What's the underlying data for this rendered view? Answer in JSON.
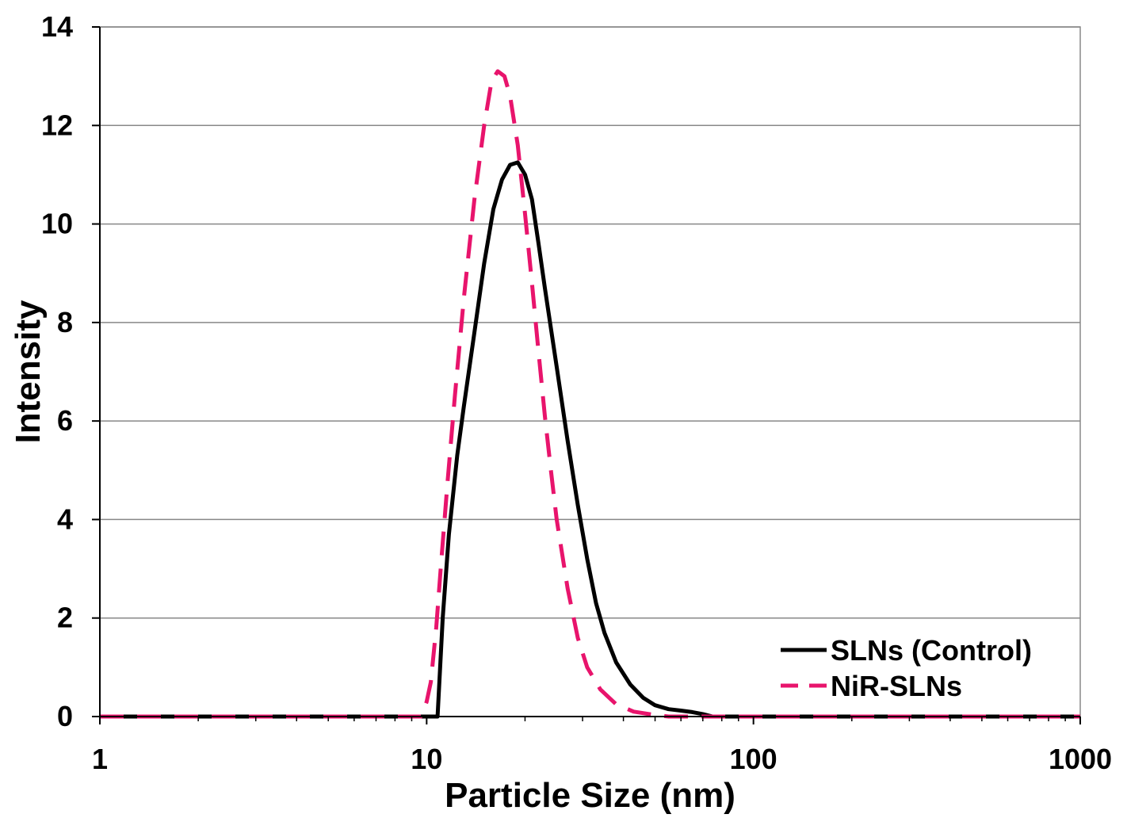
{
  "chart_data": {
    "type": "line",
    "title": "",
    "xlabel": "Particle Size (nm)",
    "ylabel": "Intensity",
    "x_scale": "log",
    "xlim": [
      1,
      1000
    ],
    "ylim": [
      0,
      14
    ],
    "x_ticks": [
      1,
      10,
      100,
      1000
    ],
    "x_tick_labels": [
      "1",
      "10",
      "100",
      "1000"
    ],
    "y_ticks": [
      0,
      2,
      4,
      6,
      8,
      10,
      12,
      14
    ],
    "y_tick_labels": [
      "0",
      "2",
      "4",
      "6",
      "8",
      "10",
      "12",
      "14"
    ],
    "grid": "horizontal",
    "legend_position": "bottom-right",
    "series": [
      {
        "name": "SLNs (Control)",
        "color": "#000000",
        "style": "solid",
        "points": [
          [
            1,
            0
          ],
          [
            10.5,
            0
          ],
          [
            10.8,
            0
          ],
          [
            11.2,
            2.0
          ],
          [
            11.7,
            3.7
          ],
          [
            12.4,
            5.3
          ],
          [
            13.0,
            6.3
          ],
          [
            14.0,
            7.8
          ],
          [
            15.0,
            9.2
          ],
          [
            16.0,
            10.3
          ],
          [
            17.0,
            10.9
          ],
          [
            18.0,
            11.2
          ],
          [
            19.0,
            11.25
          ],
          [
            20.0,
            11.0
          ],
          [
            21.0,
            10.5
          ],
          [
            22.0,
            9.6
          ],
          [
            23.0,
            8.7
          ],
          [
            25.0,
            7.1
          ],
          [
            27.0,
            5.6
          ],
          [
            29.0,
            4.3
          ],
          [
            31.0,
            3.2
          ],
          [
            33.0,
            2.3
          ],
          [
            35.0,
            1.7
          ],
          [
            38.0,
            1.1
          ],
          [
            42.0,
            0.65
          ],
          [
            46.0,
            0.38
          ],
          [
            50.0,
            0.23
          ],
          [
            55.0,
            0.15
          ],
          [
            60.0,
            0.12
          ],
          [
            65.0,
            0.09
          ],
          [
            70.0,
            0.05
          ],
          [
            75.0,
            0.0
          ],
          [
            1000,
            0
          ]
        ]
      },
      {
        "name": "NiR-SLNs",
        "color": "#e8146c",
        "style": "dashed",
        "points": [
          [
            1,
            0
          ],
          [
            9.6,
            0
          ],
          [
            10.0,
            0.3
          ],
          [
            10.3,
            0.7
          ],
          [
            10.7,
            1.8
          ],
          [
            11.1,
            3.2
          ],
          [
            11.6,
            4.8
          ],
          [
            12.2,
            6.5
          ],
          [
            13.0,
            8.5
          ],
          [
            14.0,
            10.5
          ],
          [
            15.0,
            12.0
          ],
          [
            15.8,
            12.9
          ],
          [
            16.5,
            13.1
          ],
          [
            17.3,
            13.0
          ],
          [
            18.0,
            12.6
          ],
          [
            19.0,
            11.6
          ],
          [
            20.0,
            10.2
          ],
          [
            21.0,
            8.8
          ],
          [
            22.0,
            7.4
          ],
          [
            23.0,
            6.1
          ],
          [
            24.0,
            5.0
          ],
          [
            25.0,
            4.0
          ],
          [
            27.0,
            2.6
          ],
          [
            29.0,
            1.6
          ],
          [
            31.0,
            1.0
          ],
          [
            34.0,
            0.55
          ],
          [
            38.0,
            0.25
          ],
          [
            43.0,
            0.1
          ],
          [
            50.0,
            0.03
          ],
          [
            55.0,
            0.0
          ],
          [
            1000,
            0
          ]
        ]
      }
    ]
  }
}
